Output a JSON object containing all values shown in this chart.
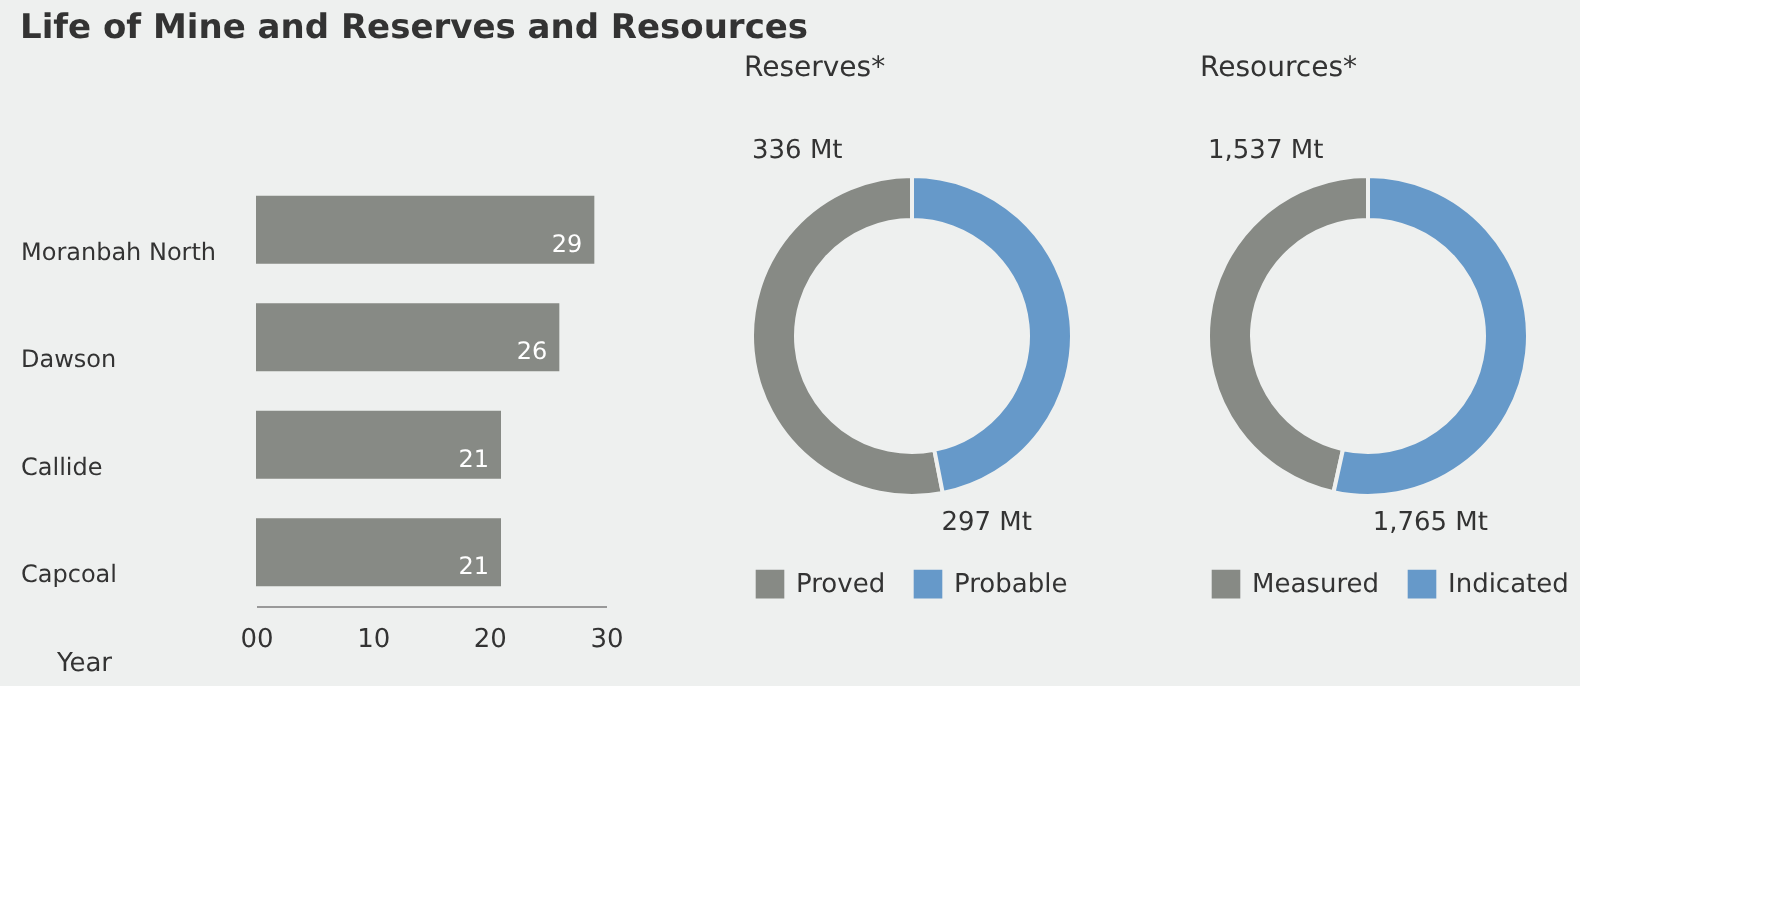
{
  "chart_data": [
    {
      "type": "bar",
      "title": "Life of Mine and Reserves and Resources",
      "orientation": "horizontal",
      "categories": [
        "Moranbah North",
        "Dawson",
        "Callide",
        "Capcoal"
      ],
      "values": [
        29,
        26,
        21,
        21
      ],
      "color": "#878a85",
      "xlabel": "Year",
      "xlim": [
        0,
        30
      ],
      "xticks": [
        {
          "value": 0,
          "label": "00"
        },
        10,
        20,
        30
      ],
      "data_labels": true,
      "grid": false
    },
    {
      "type": "donut",
      "title": "Reserves*",
      "categories": [
        "Proved",
        "Probable"
      ],
      "values": [
        336,
        297
      ],
      "colors": [
        "#878a85",
        "#6699c9"
      ],
      "value_labels": [
        "336 Mt",
        "297 Mt"
      ],
      "legend": "bottom"
    },
    {
      "type": "donut",
      "title": "Resources*",
      "categories": [
        "Measured",
        "Indicated"
      ],
      "values": [
        1537,
        1765
      ],
      "colors": [
        "#878a85",
        "#6699c9"
      ],
      "value_labels": [
        "1,537 Mt",
        "1,765 Mt"
      ],
      "legend": "bottom"
    }
  ]
}
